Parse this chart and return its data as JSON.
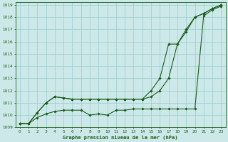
{
  "background_color": "#cce8e8",
  "grid_color": "#99cccc",
  "line_color": "#1a5c1a",
  "xlabel": "Graphe pression niveau de la mer (hPa)",
  "xlim": [
    -0.5,
    23.5
  ],
  "ylim": [
    1009,
    1019.2
  ],
  "yticks": [
    1009,
    1010,
    1011,
    1012,
    1013,
    1014,
    1015,
    1016,
    1017,
    1018,
    1019
  ],
  "xticks": [
    0,
    1,
    2,
    3,
    4,
    5,
    6,
    7,
    8,
    9,
    10,
    11,
    12,
    13,
    14,
    15,
    16,
    17,
    18,
    19,
    20,
    21,
    22,
    23
  ],
  "series1": {
    "x": [
      0,
      1,
      2,
      3,
      4,
      5,
      6,
      7,
      8,
      9,
      10,
      11,
      12,
      13,
      14,
      15,
      16,
      17,
      18,
      19,
      20,
      21,
      22,
      23
    ],
    "y": [
      1009.3,
      1009.3,
      1009.8,
      1010.1,
      1010.3,
      1010.4,
      1010.4,
      1010.4,
      1010.0,
      1010.1,
      1010.0,
      1010.4,
      1010.4,
      1010.5,
      1010.5,
      1010.5,
      1010.5,
      1010.5,
      1010.5,
      1010.5,
      1010.5,
      1018.1,
      1018.6,
      1018.9
    ]
  },
  "series2": {
    "x": [
      0,
      1,
      2,
      3,
      4,
      5,
      6,
      7,
      8,
      9,
      10,
      11,
      12,
      13,
      14,
      15,
      16,
      17,
      18,
      19,
      20,
      21,
      22,
      23
    ],
    "y": [
      1009.3,
      1009.3,
      1010.2,
      1011.0,
      1011.5,
      1011.4,
      1011.3,
      1011.3,
      1011.3,
      1011.3,
      1011.3,
      1011.3,
      1011.3,
      1011.3,
      1011.3,
      1011.5,
      1012.0,
      1013.0,
      1015.8,
      1016.8,
      1018.0,
      1018.3,
      1018.7,
      1019.0
    ]
  },
  "series3": {
    "x": [
      0,
      1,
      2,
      3,
      4,
      5,
      6,
      7,
      8,
      9,
      10,
      11,
      12,
      13,
      14,
      15,
      16,
      17,
      18,
      19,
      20,
      21,
      22,
      23
    ],
    "y": [
      1009.3,
      1009.3,
      1010.2,
      1011.0,
      1011.5,
      1011.4,
      1011.3,
      1011.3,
      1011.3,
      1011.3,
      1011.3,
      1011.3,
      1011.3,
      1011.3,
      1011.3,
      1012.0,
      1013.0,
      1015.8,
      1015.8,
      1017.0,
      1018.0,
      1018.3,
      1018.7,
      1019.0
    ]
  }
}
